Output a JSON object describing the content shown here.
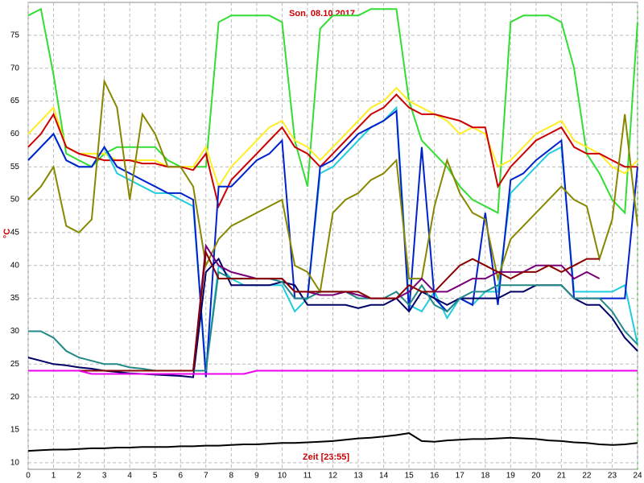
{
  "chart_data": {
    "type": "line",
    "title": "Son, 08.10.2017",
    "x_label": "Zeit [23:55]",
    "y_label": "°C",
    "x": [
      0,
      0.5,
      1,
      1.5,
      2,
      2.5,
      3,
      3.5,
      4,
      4.5,
      5,
      5.5,
      6,
      6.5,
      7,
      7.5,
      8,
      8.5,
      9,
      9.5,
      10,
      10.5,
      11,
      11.5,
      12,
      12.5,
      13,
      13.5,
      14,
      14.5,
      15,
      15.5,
      16,
      16.5,
      17,
      17.5,
      18,
      18.5,
      19,
      19.5,
      20,
      20.5,
      21,
      21.5,
      22,
      22.5,
      23,
      23.5,
      24
    ],
    "xlim": [
      0,
      24
    ],
    "xticks": [
      0,
      1,
      2,
      3,
      4,
      5,
      6,
      7,
      8,
      9,
      10,
      11,
      12,
      13,
      14,
      15,
      16,
      17,
      18,
      19,
      20,
      21,
      22,
      23,
      24
    ],
    "ylim": [
      9,
      80
    ],
    "yticks": [
      10,
      15,
      20,
      25,
      30,
      35,
      40,
      45,
      50,
      55,
      60,
      65,
      70,
      75
    ],
    "grid": true,
    "series": [
      {
        "color": "#33dd33",
        "values": [
          78,
          79,
          69,
          57,
          56,
          55,
          57,
          58,
          58,
          58,
          58,
          56,
          55,
          55,
          55,
          77,
          78,
          78,
          78,
          78,
          77,
          59,
          52,
          76,
          78,
          78,
          78,
          79,
          79,
          79,
          65,
          59,
          57,
          55,
          52,
          50,
          49,
          48,
          77,
          78,
          78,
          78,
          77,
          70,
          57,
          54,
          50,
          48,
          77
        ]
      },
      {
        "color": "#ffee22",
        "values": [
          60,
          62,
          64,
          58,
          57,
          57,
          57,
          56,
          56,
          56,
          56,
          55,
          55,
          55,
          58,
          52,
          55,
          57,
          59,
          61,
          62,
          59,
          58,
          56,
          58,
          60,
          62,
          64,
          65,
          67,
          65,
          64,
          63,
          62,
          60,
          61,
          60,
          55,
          56,
          58,
          60,
          61,
          62,
          59,
          58,
          57,
          55,
          54,
          56
        ]
      },
      {
        "color": "#cc0000",
        "values": [
          58,
          60,
          63,
          58,
          57,
          56.5,
          56,
          56,
          56,
          55.5,
          55.5,
          55,
          55,
          54.5,
          57,
          49,
          53,
          55,
          57,
          59,
          61,
          58,
          57,
          55,
          57,
          59,
          61,
          63,
          64,
          66,
          64,
          63,
          63,
          62.5,
          62,
          61,
          61,
          52,
          55,
          57,
          59,
          60,
          61,
          58,
          57,
          57,
          56,
          55,
          55
        ]
      },
      {
        "color": "#22ccdd",
        "values": [
          56,
          58,
          60,
          56,
          55,
          55,
          58,
          54,
          53,
          52,
          51,
          51,
          50,
          49,
          24,
          40,
          38,
          37,
          37,
          37,
          37,
          33,
          35,
          54,
          55,
          57,
          59,
          61,
          62,
          64,
          34,
          33,
          36,
          32,
          35,
          34,
          36,
          36,
          51,
          53,
          55,
          57,
          58,
          36,
          36,
          36,
          36,
          37,
          28
        ]
      },
      {
        "color": "#0022cc",
        "values": [
          56,
          58,
          60,
          56,
          55,
          55,
          58,
          55,
          54,
          53,
          52,
          51,
          51,
          50,
          23,
          52,
          52,
          54,
          56,
          57,
          59,
          35,
          35,
          55,
          56,
          58,
          60,
          61,
          62,
          63.5,
          33,
          58,
          35,
          33,
          35,
          34,
          48,
          34,
          53,
          54,
          56,
          57.5,
          59,
          35,
          35,
          35,
          35,
          35,
          55
        ]
      },
      {
        "color": "#000066",
        "values": [
          26,
          25.5,
          25,
          24.8,
          24.5,
          24.3,
          24,
          23.8,
          23.6,
          23.5,
          23.4,
          23.3,
          23.2,
          23,
          39,
          41,
          37,
          37,
          37,
          37,
          37.5,
          37,
          34,
          34,
          34,
          34,
          33.5,
          34,
          34,
          35,
          33,
          36,
          35,
          34,
          35,
          35,
          35,
          35,
          36,
          36,
          37,
          37,
          37,
          35,
          34,
          34,
          32,
          29,
          27
        ]
      },
      {
        "color": "#228888",
        "values": [
          30,
          30,
          29,
          27,
          26,
          25.5,
          25,
          25,
          24.5,
          24.3,
          24,
          24,
          24,
          24,
          24,
          39,
          38,
          38,
          38,
          38,
          37.5,
          35,
          35,
          36,
          36,
          36,
          35,
          35,
          35,
          36,
          34,
          37,
          34,
          33,
          35,
          36,
          36,
          37,
          37,
          37,
          37,
          37,
          37,
          35,
          35,
          35,
          33,
          30,
          28
        ]
      },
      {
        "color": "#888800",
        "values": [
          50,
          52,
          55,
          46,
          45,
          47,
          68,
          64,
          50,
          63,
          60,
          55,
          55,
          52,
          40,
          44,
          46,
          47,
          48,
          49,
          50,
          40,
          39,
          36,
          48,
          50,
          51,
          53,
          54,
          56,
          38,
          38,
          49,
          56,
          51,
          48,
          47,
          38,
          44,
          46,
          48,
          50,
          52,
          50,
          49,
          41,
          47,
          63,
          46
        ]
      },
      {
        "color": "#770077",
        "values": [
          24,
          24,
          24,
          24,
          24,
          24,
          24,
          24,
          24,
          24,
          24,
          24,
          24,
          24,
          43,
          40,
          39,
          38.5,
          38,
          38,
          38,
          36,
          36,
          35.5,
          35.5,
          36,
          35.5,
          35,
          35,
          35,
          36,
          38,
          36,
          36,
          37,
          38,
          38,
          39,
          39,
          39,
          40,
          40,
          40,
          38,
          39,
          38,
          null,
          null,
          null
        ]
      },
      {
        "color": "#880000",
        "values": [
          24,
          24,
          24,
          24,
          24,
          24,
          24,
          24,
          24,
          24,
          24,
          24,
          24,
          24,
          42,
          38,
          38,
          38,
          38,
          38,
          38,
          36,
          36,
          36,
          36,
          36,
          36,
          35,
          35,
          35,
          37,
          36,
          36,
          38,
          40,
          41,
          40,
          39,
          38,
          39,
          39,
          40,
          39,
          40,
          41,
          41,
          null,
          null,
          null
        ]
      },
      {
        "color": "#ee00ee",
        "values": [
          24,
          24,
          24,
          24,
          24,
          23.5,
          23.5,
          23.5,
          23.5,
          23.5,
          23.5,
          23.5,
          23.5,
          23.5,
          23.5,
          23.5,
          23.5,
          23.5,
          24,
          24,
          24,
          24,
          24,
          24,
          24,
          24,
          24,
          24,
          24,
          24,
          24,
          24,
          24,
          24,
          24,
          24,
          24,
          24,
          24,
          24,
          24,
          24,
          24,
          24,
          24,
          24,
          24,
          24,
          24
        ]
      },
      {
        "color": "#000000",
        "values": [
          11.8,
          11.9,
          12,
          12,
          12.1,
          12.2,
          12.2,
          12.3,
          12.3,
          12.4,
          12.4,
          12.4,
          12.5,
          12.5,
          12.6,
          12.6,
          12.7,
          12.8,
          12.8,
          12.9,
          13,
          13,
          13.1,
          13.2,
          13.3,
          13.5,
          13.7,
          13.8,
          14,
          14.2,
          14.5,
          13.3,
          13.2,
          13.4,
          13.5,
          13.6,
          13.6,
          13.7,
          13.8,
          13.7,
          13.6,
          13.4,
          13.3,
          13.1,
          13,
          12.8,
          12.7,
          12.8,
          13
        ]
      }
    ]
  }
}
